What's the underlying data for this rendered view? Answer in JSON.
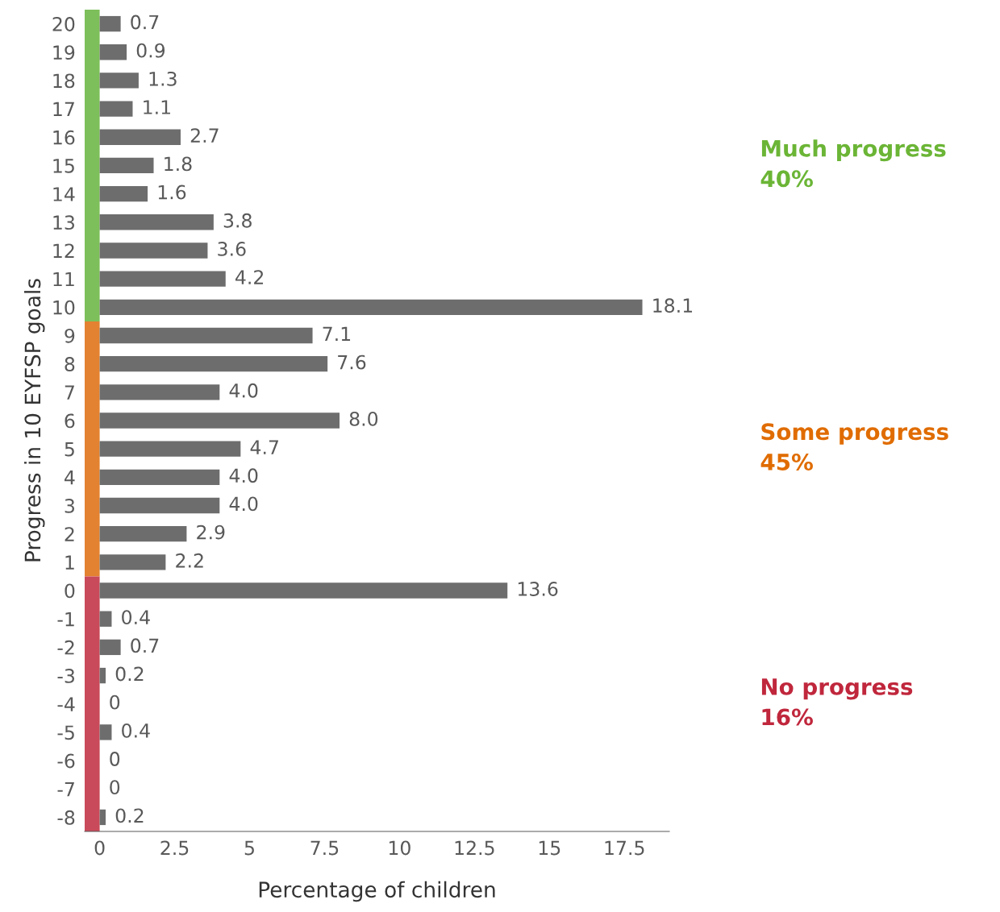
{
  "chart_data": {
    "type": "bar",
    "orientation": "horizontal",
    "xlabel": "Percentage of children",
    "ylabel": "Progress in 10 EYFSP goals",
    "categories": [
      "20",
      "19",
      "18",
      "17",
      "16",
      "15",
      "14",
      "13",
      "12",
      "11",
      "10",
      "9",
      "8",
      "7",
      "6",
      "5",
      "4",
      "3",
      "2",
      "1",
      "0",
      "-1",
      "-2",
      "-3",
      "-4",
      "-5",
      "-6",
      "-7",
      "-8"
    ],
    "values": [
      0.7,
      0.9,
      1.3,
      1.1,
      2.7,
      1.8,
      1.6,
      3.8,
      3.6,
      4.2,
      18.1,
      7.1,
      7.6,
      4.0,
      8.0,
      4.7,
      4.0,
      4.0,
      2.9,
      2.2,
      13.6,
      0.4,
      0.7,
      0.2,
      0,
      0.4,
      0,
      0,
      0.2
    ],
    "value_labels": [
      "0.7",
      "0.9",
      "1.3",
      "1.1",
      "2.7",
      "1.8",
      "1.6",
      "3.8",
      "3.6",
      "4.2",
      "18.1",
      "7.1",
      "7.6",
      "4.0",
      "8.0",
      "4.7",
      "4.0",
      "4.0",
      "2.9",
      "2.2",
      "13.6",
      "0.4",
      "0.7",
      "0.2",
      "0",
      "0.4",
      "0",
      "0",
      "0.2"
    ],
    "color": "#6d6d6d",
    "xlim": [
      -0.5,
      19
    ],
    "xticks": [
      0,
      2.5,
      5,
      7.5,
      10,
      12.5,
      15,
      17.5
    ],
    "annotations": [
      "Much progress\n40%",
      "Some progress\n45%",
      "No progress\n16%"
    ],
    "grid": false,
    "legend": false
  }
}
